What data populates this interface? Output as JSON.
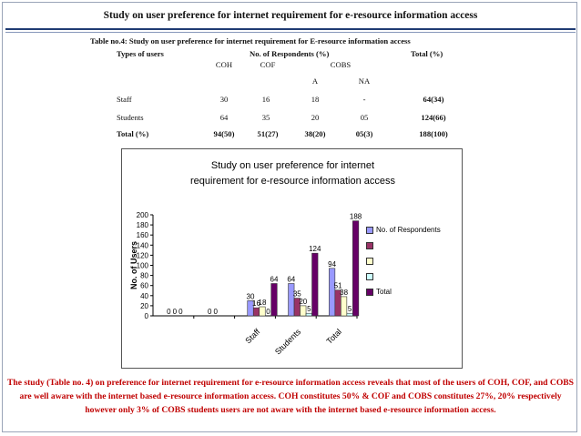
{
  "title": "Study on user preference for internet requirement for e-resource information access",
  "table": {
    "caption": "Table no.4: Study on user preference for internet requirement for E-resource information access",
    "col_types": "Types of users",
    "col_respondents": "No. of Respondents (%)",
    "col_total": "Total (%)",
    "sub_coh": "COH",
    "sub_cof": "COF",
    "sub_cobs": "COBS",
    "sub_a": "A",
    "sub_na": "NA",
    "rows": [
      {
        "label": "Staff",
        "coh": "30",
        "cof": "16",
        "a": "18",
        "na": "-",
        "total": "64(34)"
      },
      {
        "label": "Students",
        "coh": "64",
        "cof": "35",
        "a": "20",
        "na": "05",
        "total": "124(66)"
      },
      {
        "label": "Total (%)",
        "coh": "94(50)",
        "cof": "51(27)",
        "a": "38(20)",
        "na": "05(3)",
        "total": "188(100)"
      }
    ]
  },
  "chart_data": {
    "type": "bar",
    "title": "Study on user preference for internet requirement for e-resource information access",
    "ylabel": "No. of Users",
    "ylim": [
      0,
      200
    ],
    "yticks": [
      0,
      20,
      40,
      60,
      80,
      100,
      120,
      140,
      160,
      180,
      200
    ],
    "categories": [
      "",
      "",
      "Staff",
      "Students",
      "Total"
    ],
    "series": [
      {
        "name": "No. of Respondents",
        "values": [
          0,
          0,
          30,
          64,
          94
        ],
        "color": "#9999ff"
      },
      {
        "name": "",
        "values": [
          0,
          0,
          16,
          35,
          51
        ],
        "color": "#993366"
      },
      {
        "name": "",
        "values": [
          0,
          0,
          18,
          20,
          38
        ],
        "color": "#ffffcc"
      },
      {
        "name": "",
        "values": [
          0,
          0,
          0,
          5,
          5
        ],
        "color": "#ccffff"
      },
      {
        "name": "Total",
        "values": [
          0,
          0,
          64,
          124,
          188
        ],
        "color": "#660066"
      }
    ],
    "value_labels": [
      [
        "0",
        "0",
        "30",
        "64",
        "94"
      ],
      [
        "0",
        "0",
        "16",
        "35",
        "51"
      ],
      [
        "0",
        "",
        "18",
        "20",
        "38"
      ],
      [
        "",
        "",
        "0",
        "5",
        "5"
      ],
      [
        "",
        "",
        "64",
        "124",
        "188"
      ]
    ],
    "legend": "right",
    "grid": false
  },
  "summary": "The study (Table no. 4) on preference for internet requirement for e-resource information access reveals that most of the users of COH, COF, and COBS are well aware with the internet based e-resource information access. COH constitutes 50% & COF and COBS constitutes 27%, 20% respectively however only 3% of COBS students users are not aware with the internet based e-resource information access."
}
